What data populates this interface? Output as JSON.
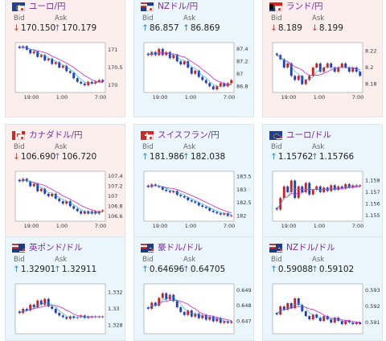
{
  "colors": {
    "up": "#2f7fd0",
    "down": "#d02f2f",
    "bull_candle": "#cf2020",
    "bear_candle": "#1f3fbf",
    "ma_line": "#cc22cc",
    "ma_line2": "#1da8d0"
  },
  "bid_label": "Bid",
  "ask_label": "Ask",
  "cards": [
    {
      "pair": "ユーロ/円",
      "flag": "eu-jp-flag",
      "theme": "red",
      "bid": "170.150",
      "bid_dir": "down",
      "ask": "170.179",
      "ask_dir": "up",
      "chart_data": {
        "type": "candlestick",
        "x_ticks": [
          "19:00",
          "1:00",
          "7:00"
        ],
        "y_ticks": [
          "171",
          "170.5",
          "170"
        ],
        "ylim": [
          169.8,
          171.2
        ],
        "closes": [
          171.05,
          171.1,
          171.0,
          170.9,
          170.95,
          170.8,
          170.85,
          170.7,
          170.75,
          170.6,
          170.65,
          170.5,
          170.55,
          170.4,
          170.35,
          170.2,
          170.1,
          170.05,
          170.0,
          170.1,
          170.05,
          170.1,
          170.15,
          170.1
        ]
      }
    },
    {
      "pair": "NZドル/円",
      "flag": "nz-jp-flag",
      "theme": "blue",
      "bid": "86.857",
      "bid_dir": "up",
      "ask": "86.869",
      "ask_dir": "up",
      "chart_data": {
        "type": "candlestick",
        "x_ticks": [
          "19:00",
          "1:00",
          "7:00"
        ],
        "y_ticks": [
          "87.4",
          "87.2",
          "87",
          "86.8"
        ],
        "ylim": [
          86.7,
          87.5
        ],
        "closes": [
          87.3,
          87.35,
          87.3,
          87.4,
          87.3,
          87.35,
          87.25,
          87.3,
          87.2,
          87.15,
          87.2,
          87.1,
          87.0,
          87.05,
          86.95,
          86.9,
          86.85,
          86.8,
          86.75,
          86.8,
          86.85,
          86.8,
          86.85,
          86.9
        ]
      }
    },
    {
      "pair": "ランド/円",
      "flag": "za-jp-flag",
      "theme": "red",
      "bid": "8.189",
      "bid_dir": "down",
      "ask": "8.199",
      "ask_dir": "down",
      "chart_data": {
        "type": "candlestick",
        "x_ticks": [
          "19:00",
          "1:00",
          "7:00"
        ],
        "y_ticks": [
          "8.22",
          "8.2",
          "8.18"
        ],
        "ylim": [
          8.17,
          8.23
        ],
        "closes": [
          8.215,
          8.21,
          8.2,
          8.205,
          8.19,
          8.185,
          8.19,
          8.18,
          8.185,
          8.19,
          8.2,
          8.205,
          8.195,
          8.2,
          8.205,
          8.2,
          8.195,
          8.2,
          8.205,
          8.2,
          8.195,
          8.2,
          8.195,
          8.19
        ]
      }
    },
    {
      "pair": "カナダドル/円",
      "flag": "ca-jp-flag",
      "theme": "red",
      "bid": "106.690",
      "bid_dir": "down",
      "ask": "106.720",
      "ask_dir": "up",
      "chart_data": {
        "type": "candlestick",
        "x_ticks": [
          "19:00",
          "1:00",
          "7:00"
        ],
        "y_ticks": [
          "107.4",
          "107.2",
          "107",
          "106.8",
          "106.6"
        ],
        "ylim": [
          106.5,
          107.5
        ],
        "closes": [
          107.3,
          107.35,
          107.3,
          107.2,
          107.25,
          107.1,
          107.15,
          107.05,
          107.0,
          107.05,
          106.95,
          106.9,
          106.85,
          106.9,
          106.8,
          106.75,
          106.7,
          106.65,
          106.7,
          106.65,
          106.7,
          106.65,
          106.7,
          106.72
        ]
      }
    },
    {
      "pair": "スイスフラン/円",
      "flag": "ch-jp-flag",
      "theme": "blue",
      "bid": "181.986",
      "bid_dir": "up",
      "ask": "182.038",
      "ask_dir": "up",
      "chart_data": {
        "type": "candlestick",
        "x_ticks": [
          "19:00",
          "1:00",
          "7:00"
        ],
        "y_ticks": [
          "183.5",
          "183",
          "182.5",
          "182"
        ],
        "ylim": [
          181.8,
          183.7
        ],
        "closes": [
          183.1,
          183.2,
          183.15,
          183.1,
          183.0,
          182.95,
          182.9,
          182.95,
          182.8,
          182.75,
          182.7,
          182.6,
          182.55,
          182.5,
          182.4,
          182.35,
          182.3,
          182.2,
          182.15,
          182.1,
          182.05,
          182.1,
          182.0,
          182.02
        ]
      }
    },
    {
      "pair": "ユーロ/ドル",
      "flag": "eu-us-flag",
      "theme": "blue",
      "bid": "1.15762",
      "bid_dir": "up",
      "ask": "1.15766",
      "ask_dir": "up",
      "chart_data": {
        "type": "candlestick",
        "x_ticks": [
          "19:00",
          "1:00",
          "7:00"
        ],
        "y_ticks": [
          "1.158",
          "1.157",
          "1.156",
          "1.155"
        ],
        "ylim": [
          1.1545,
          1.1588
        ],
        "closes": [
          1.1555,
          1.1565,
          1.1575,
          1.157,
          1.158,
          1.1565,
          1.1575,
          1.157,
          1.1578,
          1.1568,
          1.1572,
          1.1575,
          1.157,
          1.1574,
          1.1571,
          1.1576,
          1.1572,
          1.1575,
          1.1573,
          1.1577,
          1.1574,
          1.1576,
          1.1575,
          1.1576
        ]
      }
    },
    {
      "pair": "英ポンド/ドル",
      "flag": "gb-us-flag",
      "theme": "blue",
      "bid": "1.32901",
      "bid_dir": "up",
      "ask": "1.32911",
      "ask_dir": "up",
      "chart_data": {
        "type": "candlestick",
        "x_ticks": [],
        "y_ticks": [
          "1.332",
          "1.33",
          "1.328"
        ],
        "ylim": [
          1.327,
          1.333
        ],
        "closes": [
          1.3295,
          1.33,
          1.3298,
          1.3305,
          1.3302,
          1.331,
          1.3305,
          1.3312,
          1.3303,
          1.33,
          1.3295,
          1.3292,
          1.329,
          1.3288,
          1.3291,
          1.3289,
          1.329,
          1.3292,
          1.3289,
          1.3291,
          1.329,
          1.3291,
          1.329,
          1.3291
        ]
      }
    },
    {
      "pair": "豪ドル/ドル",
      "flag": "au-us-flag",
      "theme": "blue",
      "bid": "0.64696",
      "bid_dir": "up",
      "ask": "0.64705",
      "ask_dir": "up",
      "chart_data": {
        "type": "candlestick",
        "x_ticks": [],
        "y_ticks": [
          "0.649",
          "0.648",
          "0.647"
        ],
        "ylim": [
          0.6462,
          0.6494
        ],
        "closes": [
          0.6478,
          0.6482,
          0.648,
          0.6485,
          0.6488,
          0.6484,
          0.6487,
          0.6483,
          0.6479,
          0.6476,
          0.6474,
          0.6477,
          0.6473,
          0.6475,
          0.6472,
          0.6474,
          0.6471,
          0.6473,
          0.647,
          0.6472,
          0.6469,
          0.647,
          0.6469,
          0.647
        ]
      }
    },
    {
      "pair": "NZドル/ドル",
      "flag": "nz-us-flag",
      "theme": "blue",
      "bid": "0.59088",
      "bid_dir": "up",
      "ask": "0.59102",
      "ask_dir": "up",
      "chart_data": {
        "type": "candlestick",
        "x_ticks": [],
        "y_ticks": [
          "0.593",
          "0.592",
          "0.591"
        ],
        "ylim": [
          0.5903,
          0.5934
        ],
        "closes": [
          0.5915,
          0.592,
          0.5918,
          0.5922,
          0.5919,
          0.5925,
          0.5921,
          0.5917,
          0.5914,
          0.5912,
          0.5915,
          0.5913,
          0.5911,
          0.5914,
          0.5912,
          0.591,
          0.5913,
          0.5911,
          0.5909,
          0.5911,
          0.591,
          0.5909,
          0.591,
          0.5909
        ]
      }
    }
  ]
}
